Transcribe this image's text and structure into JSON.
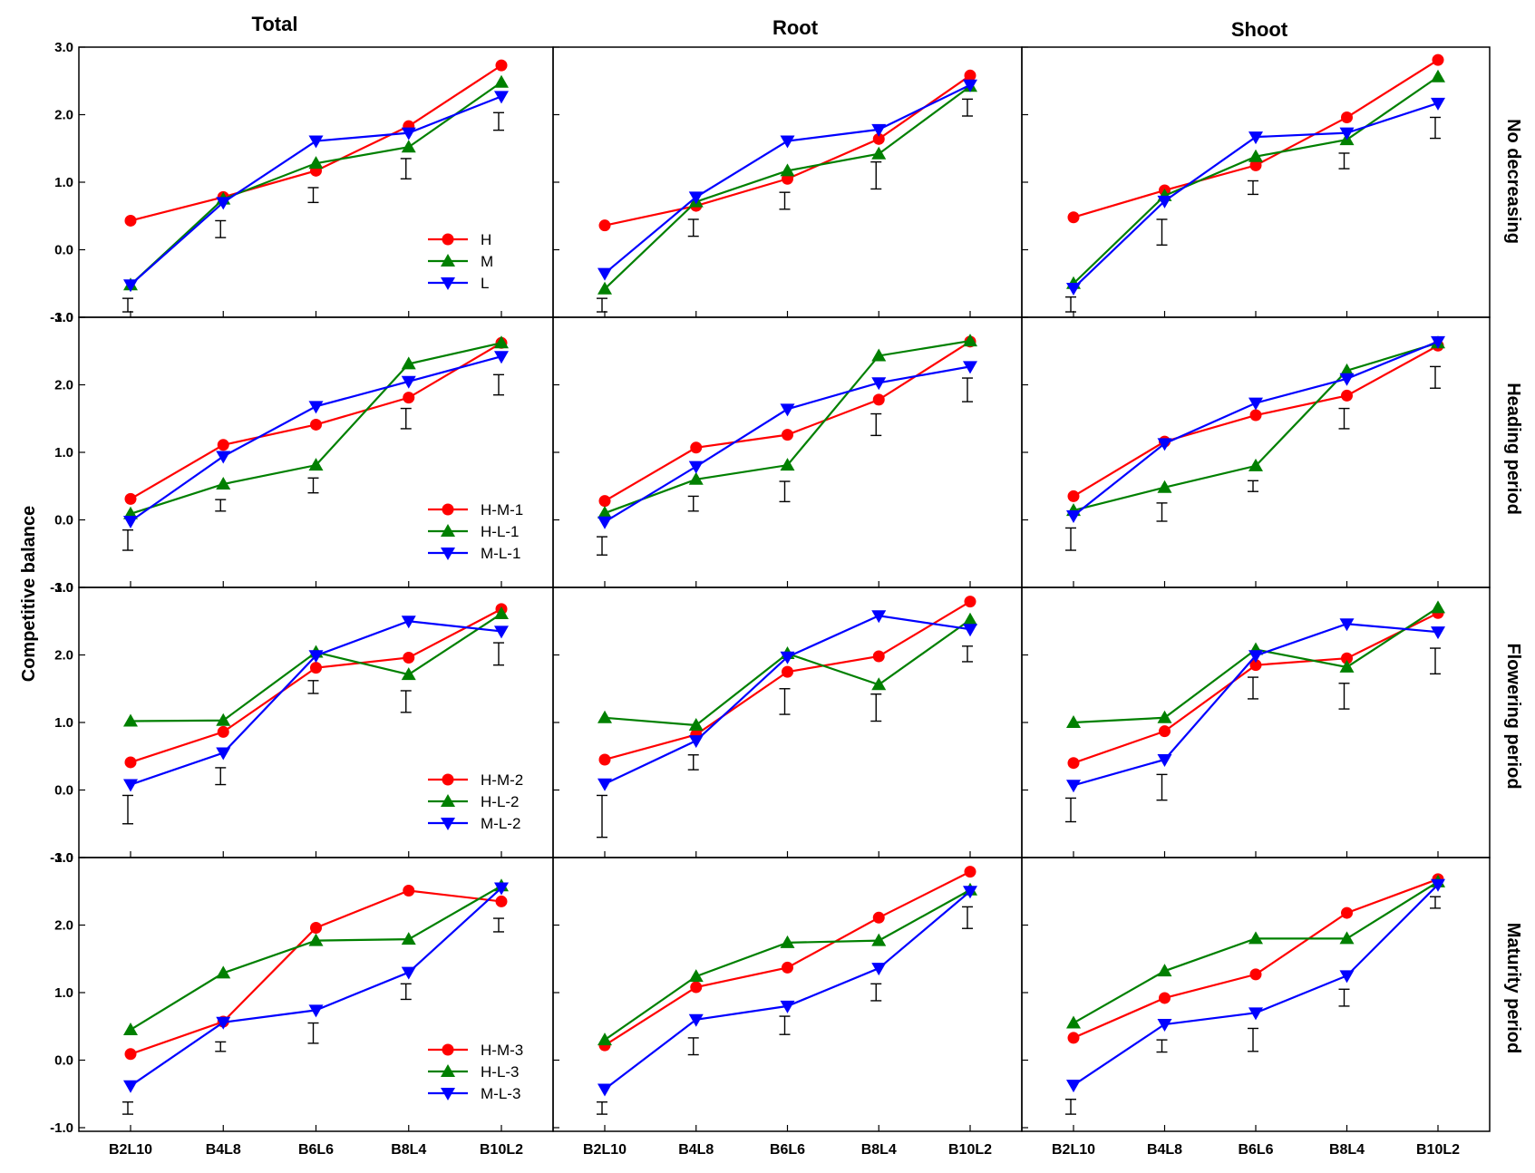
{
  "chart_data": {
    "type": "line",
    "ylabel": "Competitive balance",
    "ylim": [
      -1.0,
      3.0
    ],
    "categories": [
      "B2L10",
      "B4L8",
      "B6L6",
      "B8L4",
      "B10L2"
    ],
    "y_ticks": [
      "3.0",
      "2.0",
      "1.0",
      "0.0",
      "-1.0"
    ],
    "columns": [
      "Total",
      "Root",
      "Shoot"
    ],
    "rows": [
      {
        "label": "No decreasing",
        "ymin": -1.0,
        "legend": [
          "H",
          "M",
          "L"
        ]
      },
      {
        "label": "Heading period",
        "ymin": -1.0,
        "legend": [
          "H-M-1",
          "H-L-1",
          "M-L-1"
        ]
      },
      {
        "label": "Flowering period",
        "ymin": -1.0,
        "legend": [
          "H-M-2",
          "H-L-2",
          "M-L-2"
        ]
      },
      {
        "label": "Maturity period",
        "ymin": -1.0,
        "legend": [
          "H-M-3",
          "H-L-3",
          "M-L-3"
        ]
      }
    ],
    "series_colors": [
      "#ff0000",
      "#008000",
      "#0000ff"
    ],
    "series_markers": [
      "circle",
      "triangle-up",
      "triangle-down"
    ],
    "panels": [
      [
        {
          "series": [
            [
              0.43,
              0.78,
              1.17,
              1.83,
              2.73
            ],
            [
              -0.52,
              0.75,
              1.28,
              1.52,
              2.48
            ],
            [
              -0.52,
              0.7,
              1.61,
              1.73,
              2.27
            ]
          ],
          "errors": [
            [
              -0.92,
              -0.72
            ],
            [
              0.18,
              0.43
            ],
            [
              0.7,
              0.92
            ],
            [
              1.05,
              1.35
            ],
            [
              1.77,
              2.03
            ]
          ]
        },
        {
          "series": [
            [
              0.36,
              0.65,
              1.05,
              1.64,
              2.58
            ],
            [
              -0.58,
              0.71,
              1.17,
              1.42,
              2.42
            ],
            [
              -0.35,
              0.78,
              1.61,
              1.78,
              2.44
            ]
          ],
          "errors": [
            [
              -0.92,
              -0.72
            ],
            [
              0.2,
              0.45
            ],
            [
              0.6,
              0.85
            ],
            [
              0.9,
              1.3
            ],
            [
              1.98,
              2.23
            ]
          ]
        },
        {
          "series": [
            [
              0.48,
              0.88,
              1.25,
              1.96,
              2.81
            ],
            [
              -0.5,
              0.8,
              1.38,
              1.63,
              2.56
            ],
            [
              -0.57,
              0.72,
              1.67,
              1.73,
              2.17
            ]
          ],
          "errors": [
            [
              -0.92,
              -0.7
            ],
            [
              0.07,
              0.45
            ],
            [
              0.82,
              1.02
            ],
            [
              1.2,
              1.43
            ],
            [
              1.65,
              1.96
            ]
          ]
        }
      ],
      [
        {
          "series": [
            [
              0.31,
              1.11,
              1.41,
              1.81,
              2.62
            ],
            [
              0.09,
              0.53,
              0.81,
              2.31,
              2.62
            ],
            [
              -0.02,
              0.94,
              1.68,
              2.05,
              2.42
            ]
          ],
          "errors": [
            [
              -0.45,
              -0.15
            ],
            [
              0.13,
              0.3
            ],
            [
              0.4,
              0.62
            ],
            [
              1.35,
              1.65
            ],
            [
              1.85,
              2.15
            ]
          ]
        },
        {
          "series": [
            [
              0.28,
              1.07,
              1.26,
              1.78,
              2.64
            ],
            [
              0.1,
              0.6,
              0.81,
              2.43,
              2.65
            ],
            [
              -0.03,
              0.79,
              1.64,
              2.03,
              2.27
            ]
          ],
          "errors": [
            [
              -0.52,
              -0.25
            ],
            [
              0.13,
              0.35
            ],
            [
              0.27,
              0.57
            ],
            [
              1.25,
              1.57
            ],
            [
              1.75,
              2.1
            ]
          ]
        },
        {
          "series": [
            [
              0.35,
              1.16,
              1.55,
              1.84,
              2.58
            ],
            [
              0.14,
              0.48,
              0.8,
              2.21,
              2.62
            ],
            [
              0.06,
              1.13,
              1.73,
              2.09,
              2.64
            ]
          ],
          "errors": [
            [
              -0.45,
              -0.12
            ],
            [
              -0.02,
              0.25
            ],
            [
              0.42,
              0.58
            ],
            [
              1.35,
              1.65
            ],
            [
              1.95,
              2.27
            ]
          ]
        }
      ],
      [
        {
          "series": [
            [
              0.41,
              0.86,
              1.81,
              1.96,
              2.68
            ],
            [
              1.02,
              1.03,
              2.04,
              1.71,
              2.61
            ],
            [
              0.08,
              0.55,
              1.99,
              2.5,
              2.35
            ]
          ],
          "errors": [
            [
              -0.5,
              -0.08
            ],
            [
              0.08,
              0.33
            ],
            [
              1.43,
              1.62
            ],
            [
              1.15,
              1.47
            ],
            [
              1.85,
              2.18
            ]
          ]
        },
        {
          "series": [
            [
              0.45,
              0.82,
              1.75,
              1.98,
              2.79
            ],
            [
              1.07,
              0.96,
              2.02,
              1.56,
              2.52
            ],
            [
              0.09,
              0.73,
              1.97,
              2.58,
              2.38
            ]
          ],
          "errors": [
            [
              -0.7,
              -0.08
            ],
            [
              0.3,
              0.52
            ],
            [
              1.12,
              1.5
            ],
            [
              1.02,
              1.42
            ],
            [
              1.9,
              2.13
            ]
          ]
        },
        {
          "series": [
            [
              0.4,
              0.87,
              1.85,
              1.95,
              2.62
            ],
            [
              1.0,
              1.07,
              2.08,
              1.82,
              2.7
            ],
            [
              0.07,
              0.45,
              1.99,
              2.46,
              2.34
            ]
          ],
          "errors": [
            [
              -0.47,
              -0.12
            ],
            [
              -0.15,
              0.23
            ],
            [
              1.35,
              1.67
            ],
            [
              1.2,
              1.58
            ],
            [
              1.72,
              2.1
            ]
          ]
        }
      ],
      [
        {
          "series": [
            [
              0.09,
              0.57,
              1.96,
              2.51,
              2.35
            ],
            [
              0.45,
              1.29,
              1.77,
              1.79,
              2.58
            ],
            [
              -0.38,
              0.56,
              0.74,
              1.3,
              2.55
            ]
          ],
          "errors": [
            [
              -0.8,
              -0.62
            ],
            [
              0.13,
              0.27
            ],
            [
              0.25,
              0.55
            ],
            [
              0.9,
              1.13
            ],
            [
              1.9,
              2.1
            ]
          ]
        },
        {
          "series": [
            [
              0.22,
              1.08,
              1.37,
              2.11,
              2.79
            ],
            [
              0.3,
              1.24,
              1.74,
              1.77,
              2.52
            ],
            [
              -0.43,
              0.6,
              0.8,
              1.36,
              2.5
            ]
          ],
          "errors": [
            [
              -0.8,
              -0.62
            ],
            [
              0.08,
              0.33
            ],
            [
              0.38,
              0.65
            ],
            [
              0.88,
              1.13
            ],
            [
              1.95,
              2.27
            ]
          ]
        },
        {
          "series": [
            [
              0.33,
              0.92,
              1.27,
              2.18,
              2.68
            ],
            [
              0.55,
              1.32,
              1.8,
              1.8,
              2.64
            ],
            [
              -0.37,
              0.53,
              0.7,
              1.25,
              2.6
            ]
          ],
          "errors": [
            [
              -0.8,
              -0.58
            ],
            [
              0.12,
              0.3
            ],
            [
              0.13,
              0.47
            ],
            [
              0.8,
              1.05
            ],
            [
              2.25,
              2.42
            ]
          ]
        }
      ]
    ]
  }
}
